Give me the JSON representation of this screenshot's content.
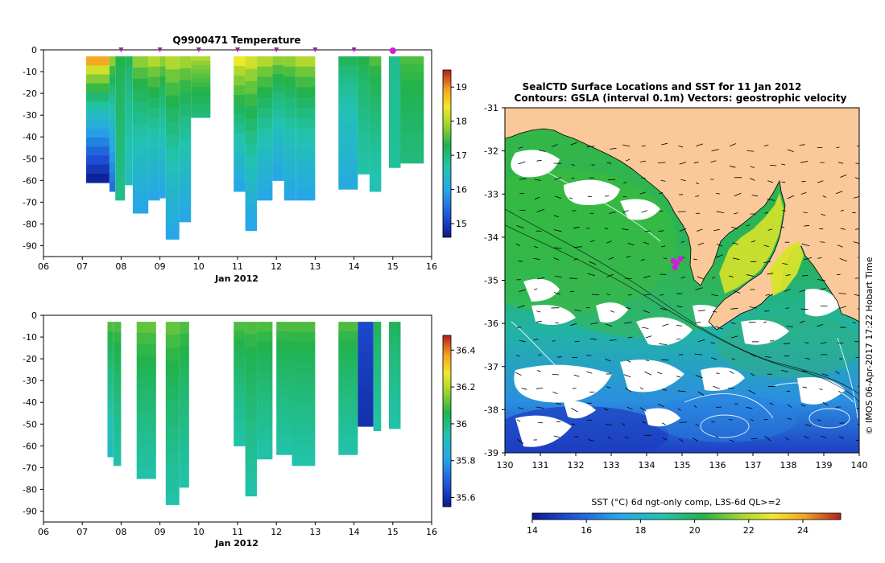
{
  "chart_data": [
    {
      "type": "heatmap",
      "title": "Q9900471  Temperature",
      "xlabel": "Jan 2012",
      "ylabel": "",
      "xlim": [
        6,
        16
      ],
      "ylim": [
        -95,
        0
      ],
      "xticks": [
        "06",
        "07",
        "08",
        "09",
        "10",
        "11",
        "12",
        "13",
        "14",
        "15",
        "16"
      ],
      "yticks": [
        "0",
        "-10",
        "-20",
        "-30",
        "-40",
        "-50",
        "-60",
        "-70",
        "-80",
        "-90"
      ],
      "colorbar": {
        "min": 14.6,
        "max": 19.5,
        "ticks": [
          "15",
          "16",
          "17",
          "18",
          "19"
        ]
      },
      "surface_markers": [
        8,
        9,
        10,
        11,
        12,
        13,
        14
      ],
      "current_marker": 15,
      "profiles": [
        {
          "x": [
            7.1,
            7.7
          ],
          "depth": 61,
          "surface": 18.9,
          "bottom": 14.7
        },
        {
          "x": [
            7.7,
            7.85
          ],
          "depth": 65,
          "surface": 17.8,
          "bottom": 15.5
        },
        {
          "x": [
            7.85,
            8.1
          ],
          "depth": 69,
          "surface": 17.3,
          "bottom": 16.9
        },
        {
          "x": [
            8.1,
            8.3
          ],
          "depth": 62,
          "surface": 17.2,
          "bottom": 16.5
        },
        {
          "x": [
            8.3,
            8.7
          ],
          "depth": 75,
          "surface": 17.8,
          "bottom": 16.0
        },
        {
          "x": [
            8.7,
            9.0
          ],
          "depth": 69,
          "surface": 18.0,
          "bottom": 16.0
        },
        {
          "x": [
            9.0,
            9.15
          ],
          "depth": 68,
          "surface": 17.8,
          "bottom": 16.0
        },
        {
          "x": [
            9.15,
            9.5
          ],
          "depth": 87,
          "surface": 18.0,
          "bottom": 16.0
        },
        {
          "x": [
            9.5,
            9.8
          ],
          "depth": 79,
          "surface": 17.9,
          "bottom": 16.0
        },
        {
          "x": [
            9.8,
            10.3
          ],
          "depth": 31,
          "surface": 18.0,
          "bottom": 17.0
        },
        {
          "x": [
            10.9,
            11.2
          ],
          "depth": 65,
          "surface": 18.4,
          "bottom": 16.0
        },
        {
          "x": [
            11.2,
            11.5
          ],
          "depth": 83,
          "surface": 18.2,
          "bottom": 16.0
        },
        {
          "x": [
            11.5,
            11.9
          ],
          "depth": 69,
          "surface": 18.0,
          "bottom": 16.0
        },
        {
          "x": [
            11.9,
            12.2
          ],
          "depth": 60,
          "surface": 17.8,
          "bottom": 16.0
        },
        {
          "x": [
            12.2,
            12.5
          ],
          "depth": 69,
          "surface": 17.8,
          "bottom": 16.0
        },
        {
          "x": [
            12.5,
            13.0
          ],
          "depth": 69,
          "surface": 18.0,
          "bottom": 16.0
        },
        {
          "x": [
            13.6,
            14.1
          ],
          "depth": 64,
          "surface": 17.2,
          "bottom": 16.1
        },
        {
          "x": [
            14.1,
            14.4
          ],
          "depth": 57,
          "surface": 17.3,
          "bottom": 16.7
        },
        {
          "x": [
            14.4,
            14.7
          ],
          "depth": 65,
          "surface": 17.5,
          "bottom": 16.6
        },
        {
          "x": [
            14.9,
            15.2
          ],
          "depth": 54,
          "surface": 16.9,
          "bottom": 16.8
        },
        {
          "x": [
            15.2,
            15.8
          ],
          "depth": 52,
          "surface": 17.5,
          "bottom": 17.0
        }
      ]
    },
    {
      "type": "heatmap",
      "title": "",
      "xlabel": "Jan 2012",
      "ylabel": "",
      "xlim": [
        6,
        16
      ],
      "ylim": [
        -95,
        0
      ],
      "xticks": [
        "06",
        "07",
        "08",
        "09",
        "10",
        "11",
        "12",
        "13",
        "14",
        "15",
        "16"
      ],
      "yticks": [
        "0",
        "-10",
        "-20",
        "-30",
        "-40",
        "-50",
        "-60",
        "-70",
        "-80",
        "-90"
      ],
      "colorbar": {
        "min": 35.55,
        "max": 36.48,
        "ticks": [
          "35.6",
          "35.8",
          "36",
          "36.2",
          "36.4"
        ]
      },
      "profiles": [
        {
          "x": [
            7.65,
            7.8
          ],
          "depth": 65,
          "surface": 36.1,
          "bottom": 35.9
        },
        {
          "x": [
            7.8,
            8.0
          ],
          "depth": 69,
          "surface": 36.1,
          "bottom": 35.95
        },
        {
          "x": [
            8.4,
            8.9
          ],
          "depth": 75,
          "surface": 36.12,
          "bottom": 35.95
        },
        {
          "x": [
            9.15,
            9.5
          ],
          "depth": 87,
          "surface": 36.12,
          "bottom": 35.95
        },
        {
          "x": [
            9.5,
            9.75
          ],
          "depth": 79,
          "surface": 36.1,
          "bottom": 35.95
        },
        {
          "x": [
            10.9,
            11.2
          ],
          "depth": 60,
          "surface": 36.1,
          "bottom": 35.95
        },
        {
          "x": [
            11.2,
            11.5
          ],
          "depth": 83,
          "surface": 36.1,
          "bottom": 35.95
        },
        {
          "x": [
            11.5,
            11.9
          ],
          "depth": 66,
          "surface": 36.1,
          "bottom": 35.95
        },
        {
          "x": [
            12.0,
            12.4
          ],
          "depth": 64,
          "surface": 36.1,
          "bottom": 35.95
        },
        {
          "x": [
            12.4,
            13.0
          ],
          "depth": 69,
          "surface": 36.1,
          "bottom": 35.95
        },
        {
          "x": [
            13.6,
            14.1
          ],
          "depth": 64,
          "surface": 36.1,
          "bottom": 35.95
        },
        {
          "x": [
            14.1,
            14.5
          ],
          "depth": 51,
          "surface": 35.65,
          "bottom": 35.6
        },
        {
          "x": [
            14.5,
            14.7
          ],
          "depth": 53,
          "surface": 36.05,
          "bottom": 35.95
        },
        {
          "x": [
            14.9,
            15.2
          ],
          "depth": 52,
          "surface": 36.05,
          "bottom": 35.95
        }
      ]
    },
    {
      "type": "heatmap",
      "title": "SealCTD Surface Locations and SST for 11 Jan 2012",
      "subtitle": "Contours: GSLA (interval 0.1m)  Vectors: geostrophic velocity",
      "xlabel": "",
      "ylabel": "",
      "xlim": [
        130,
        140
      ],
      "ylim": [
        -39,
        -31
      ],
      "xticks": [
        "130",
        "131",
        "132",
        "133",
        "134",
        "135",
        "136",
        "137",
        "138",
        "139",
        "140"
      ],
      "yticks": [
        "-31",
        "-32",
        "-33",
        "-34",
        "-35",
        "-36",
        "-37",
        "-38",
        "-39"
      ],
      "colorbar": {
        "min": 14,
        "max": 25.4,
        "ticks": [
          "14",
          "16",
          "18",
          "20",
          "22",
          "24"
        ],
        "label": "SST (°C) 6d ngt-only comp, L3S-6d QL>=2"
      },
      "seal_locations": [
        [
          134.75,
          -34.55
        ],
        [
          134.85,
          -34.6
        ],
        [
          134.95,
          -34.5
        ],
        [
          134.8,
          -34.7
        ]
      ],
      "side_text": "© IMOS 06-Apr-2017 17:22 Hobart Time"
    }
  ]
}
